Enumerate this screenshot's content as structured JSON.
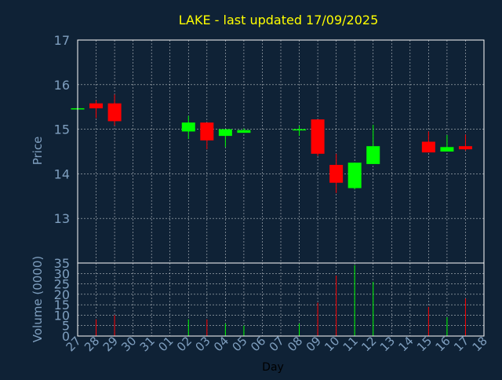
{
  "colors": {
    "background": "#0f2236",
    "title": "#ffff00",
    "axis_text": "#7f9fbf",
    "frame": "#ffffff",
    "grid": "#ffffff",
    "up": "#00ff00",
    "down": "#ff0000",
    "xlabel": "#000000"
  },
  "chart_data": {
    "type": "candlestick",
    "title": "LAKE - last updated 17/09/2025",
    "xlabel": "Day",
    "grid": true,
    "x_ticks": [
      "27",
      "28",
      "29",
      "30",
      "31",
      "01",
      "02",
      "03",
      "04",
      "05",
      "06",
      "07",
      "08",
      "09",
      "10",
      "11",
      "12",
      "13",
      "14",
      "15",
      "16",
      "17",
      "18"
    ],
    "price_panel": {
      "ylabel": "Price",
      "ylim": [
        12,
        17
      ],
      "yticks": [
        13,
        14,
        15,
        16,
        17
      ]
    },
    "volume_panel": {
      "ylabel": "Volume (0000)",
      "ylim": [
        0,
        35
      ],
      "yticks": [
        0,
        5,
        10,
        15,
        20,
        25,
        30,
        35
      ]
    },
    "series": [
      {
        "day": "27",
        "open": 15.47,
        "high": 15.47,
        "low": 15.47,
        "close": 15.47,
        "volume": 0
      },
      {
        "day": "28",
        "open": 15.58,
        "high": 15.65,
        "low": 15.25,
        "close": 15.47,
        "volume": 8
      },
      {
        "day": "29",
        "open": 15.58,
        "high": 15.78,
        "low": 15.08,
        "close": 15.18,
        "volume": 10
      },
      {
        "day": "02",
        "open": 14.95,
        "high": 15.3,
        "low": 14.78,
        "close": 15.15,
        "volume": 8
      },
      {
        "day": "03",
        "open": 15.15,
        "high": 15.15,
        "low": 14.55,
        "close": 14.75,
        "volume": 8
      },
      {
        "day": "04",
        "open": 14.85,
        "high": 15.0,
        "low": 14.6,
        "close": 15.0,
        "volume": 6
      },
      {
        "day": "05",
        "open": 14.92,
        "high": 15.02,
        "low": 14.92,
        "close": 14.98,
        "volume": 5
      },
      {
        "day": "08",
        "open": 14.98,
        "high": 15.08,
        "low": 14.85,
        "close": 15.0,
        "volume": 6
      },
      {
        "day": "09",
        "open": 15.22,
        "high": 15.22,
        "low": 14.4,
        "close": 14.45,
        "volume": 16
      },
      {
        "day": "10",
        "open": 14.2,
        "high": 14.45,
        "low": 13.57,
        "close": 13.8,
        "volume": 29
      },
      {
        "day": "11",
        "open": 13.68,
        "high": 14.25,
        "low": 13.65,
        "close": 14.25,
        "volume": 34
      },
      {
        "day": "12",
        "open": 14.22,
        "high": 15.1,
        "low": 14.22,
        "close": 14.62,
        "volume": 26
      },
      {
        "day": "15",
        "open": 14.72,
        "high": 14.95,
        "low": 14.48,
        "close": 14.48,
        "volume": 14
      },
      {
        "day": "16",
        "open": 14.5,
        "high": 14.87,
        "low": 14.5,
        "close": 14.6,
        "volume": 9
      },
      {
        "day": "17",
        "open": 14.62,
        "high": 14.88,
        "low": 14.52,
        "close": 14.55,
        "volume": 18
      }
    ]
  }
}
